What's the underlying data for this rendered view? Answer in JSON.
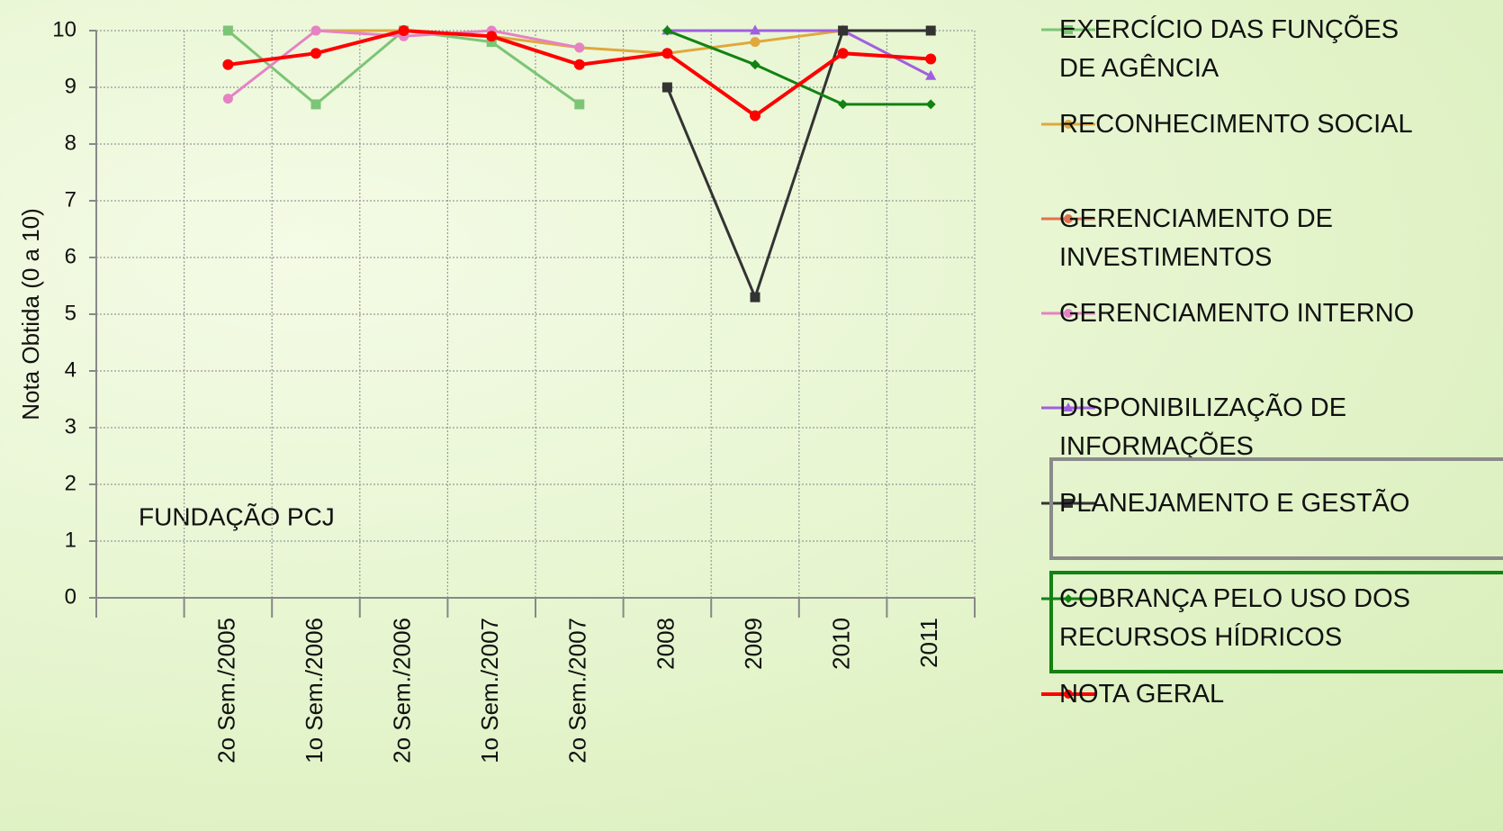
{
  "chart_data": {
    "type": "line",
    "y_label": "Nota Obtida (0 a 10)",
    "annotation": "FUNDAÇÃO PCJ",
    "categories": [
      null,
      "2o Sem./2005",
      "1o Sem./2006",
      "2o Sem./2006",
      "1o Sem./2007",
      "2o Sem./2007",
      "2008",
      "2009",
      "2010",
      "2011"
    ],
    "ylim": [
      0,
      10
    ],
    "yticks": [
      0,
      1,
      2,
      3,
      4,
      5,
      6,
      7,
      8,
      9,
      10
    ],
    "grid": true,
    "legend": "right",
    "series": [
      {
        "name": "EXERCÍCIO DAS FUNÇÕES DE AGÊNCIA",
        "color": "#7cc576",
        "marker": "square",
        "values": [
          null,
          10,
          8.7,
          10,
          9.8,
          8.7,
          null,
          null,
          null,
          null
        ]
      },
      {
        "name": "RECONHECIMENTO SOCIAL",
        "color": "#e0a83c",
        "marker": "circle",
        "values": [
          null,
          null,
          10,
          10,
          9.9,
          9.7,
          9.6,
          9.8,
          10,
          null
        ]
      },
      {
        "name": "GERENCIAMENTO DE INVESTIMENTOS",
        "color": "#e2704e",
        "marker": "circle",
        "values": [
          null,
          null,
          null,
          10,
          null,
          null,
          null,
          null,
          null,
          null
        ]
      },
      {
        "name": "GERENCIAMENTO INTERNO",
        "color": "#e582c4",
        "marker": "circle",
        "values": [
          null,
          8.8,
          10,
          9.9,
          10,
          9.7,
          null,
          null,
          null,
          null
        ]
      },
      {
        "name": "DISPONIBILIZAÇÃO DE INFORMAÇÕES",
        "color": "#a05fe0",
        "marker": "triangle",
        "values": [
          null,
          null,
          null,
          null,
          null,
          null,
          10,
          10,
          10,
          9.2
        ]
      },
      {
        "name": "PLANEJAMENTO E GESTÃO",
        "color": "#333333",
        "marker": "square",
        "values": [
          null,
          null,
          null,
          null,
          null,
          null,
          9,
          5.3,
          10,
          10
        ]
      },
      {
        "name": "COBRANÇA PELO USO DOS RECURSOS HÍDRICOS",
        "color": "#128212",
        "marker": "diamond",
        "values": [
          null,
          null,
          null,
          null,
          null,
          null,
          10,
          9.4,
          8.7,
          8.7
        ]
      },
      {
        "name": "NOTA GERAL",
        "color": "#ff0000",
        "marker": "circle",
        "values": [
          null,
          9.4,
          9.6,
          10,
          9.9,
          9.4,
          9.6,
          8.5,
          9.6,
          9.5
        ]
      }
    ]
  }
}
